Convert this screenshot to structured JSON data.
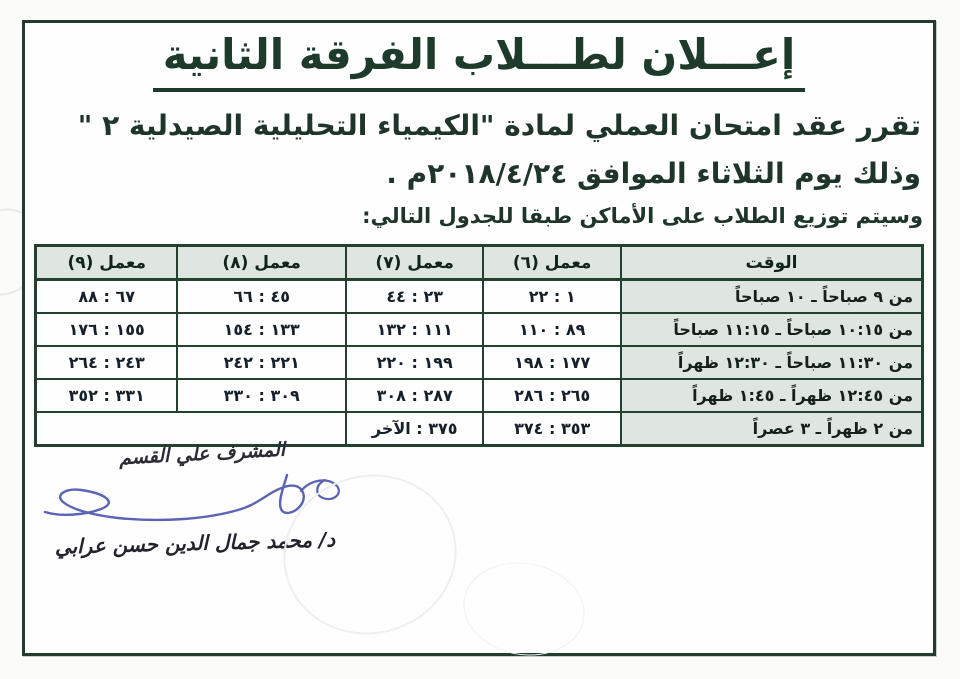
{
  "page": {
    "title": "إعـــلان لطـــلاب الفرقة الثانية",
    "line1": "تقرر عقد امتحان العملي لمادة \"الكيمياء التحليلية الصيدلية ٢ \"",
    "line2": "وذلك يوم الثلاثاء الموافق ٢٠١٨/٤/٢٤م .",
    "line3": "وسيتم توزيع الطلاب على الأماكن طبقا للجدول التالي:"
  },
  "table": {
    "headers": [
      "الوقت",
      "معمل (٦)",
      "معمل (٧)",
      "معمل (٨)",
      "معمل (٩)"
    ],
    "col_widths_percent": [
      34,
      15.5,
      15.5,
      19,
      16
    ],
    "rows": [
      {
        "cells": [
          "من ٩ صباحاً ـ ١٠ صباحاً",
          "١ : ٢٢",
          "٢٣ : ٤٤",
          "٤٥ : ٦٦",
          "٦٧ : ٨٨"
        ],
        "colspans": [
          1,
          1,
          1,
          1,
          1
        ]
      },
      {
        "cells": [
          "من ١٠:١٥ صباحاً ـ ١١:١٥ صباحاً",
          "٨٩ : ١١٠",
          "١١١ : ١٣٢",
          "١٣٣ : ١٥٤",
          "١٥٥ : ١٧٦"
        ],
        "colspans": [
          1,
          1,
          1,
          1,
          1
        ]
      },
      {
        "cells": [
          "من ١١:٣٠ صباحاً ـ ١٢:٣٠ ظهراً",
          "١٧٧ : ١٩٨",
          "١٩٩ : ٢٢٠",
          "٢٢١ : ٢٤٢",
          "٢٤٣ : ٢٦٤"
        ],
        "colspans": [
          1,
          1,
          1,
          1,
          1
        ]
      },
      {
        "cells": [
          "من ١٢:٤٥ ظهراً ـ ١:٤٥ ظهراً",
          "٢٦٥ : ٢٨٦",
          "٢٨٧ : ٣٠٨",
          "٣٠٩ : ٣٣٠",
          "٣٣١ : ٣٥٢"
        ],
        "colspans": [
          1,
          1,
          1,
          1,
          1
        ]
      },
      {
        "cells": [
          "من ٢ ظهراً ـ ٣ عصراً",
          "٣٥٣ : ٣٧٤",
          "٣٧٥ : الآخر",
          ""
        ],
        "colspans": [
          1,
          1,
          1,
          2
        ]
      }
    ]
  },
  "signature": {
    "role": "المشرف علي القسم",
    "name": "د/ محمد جمال الدين حسن عرابي"
  },
  "colors": {
    "title_ink": "#1d3a2a",
    "body_ink": "#1f352a",
    "table_border": "#24402f",
    "cell_bg": "#dfe6e1",
    "signature_ink": "#5a63b5",
    "frame_border": "#223c30"
  }
}
